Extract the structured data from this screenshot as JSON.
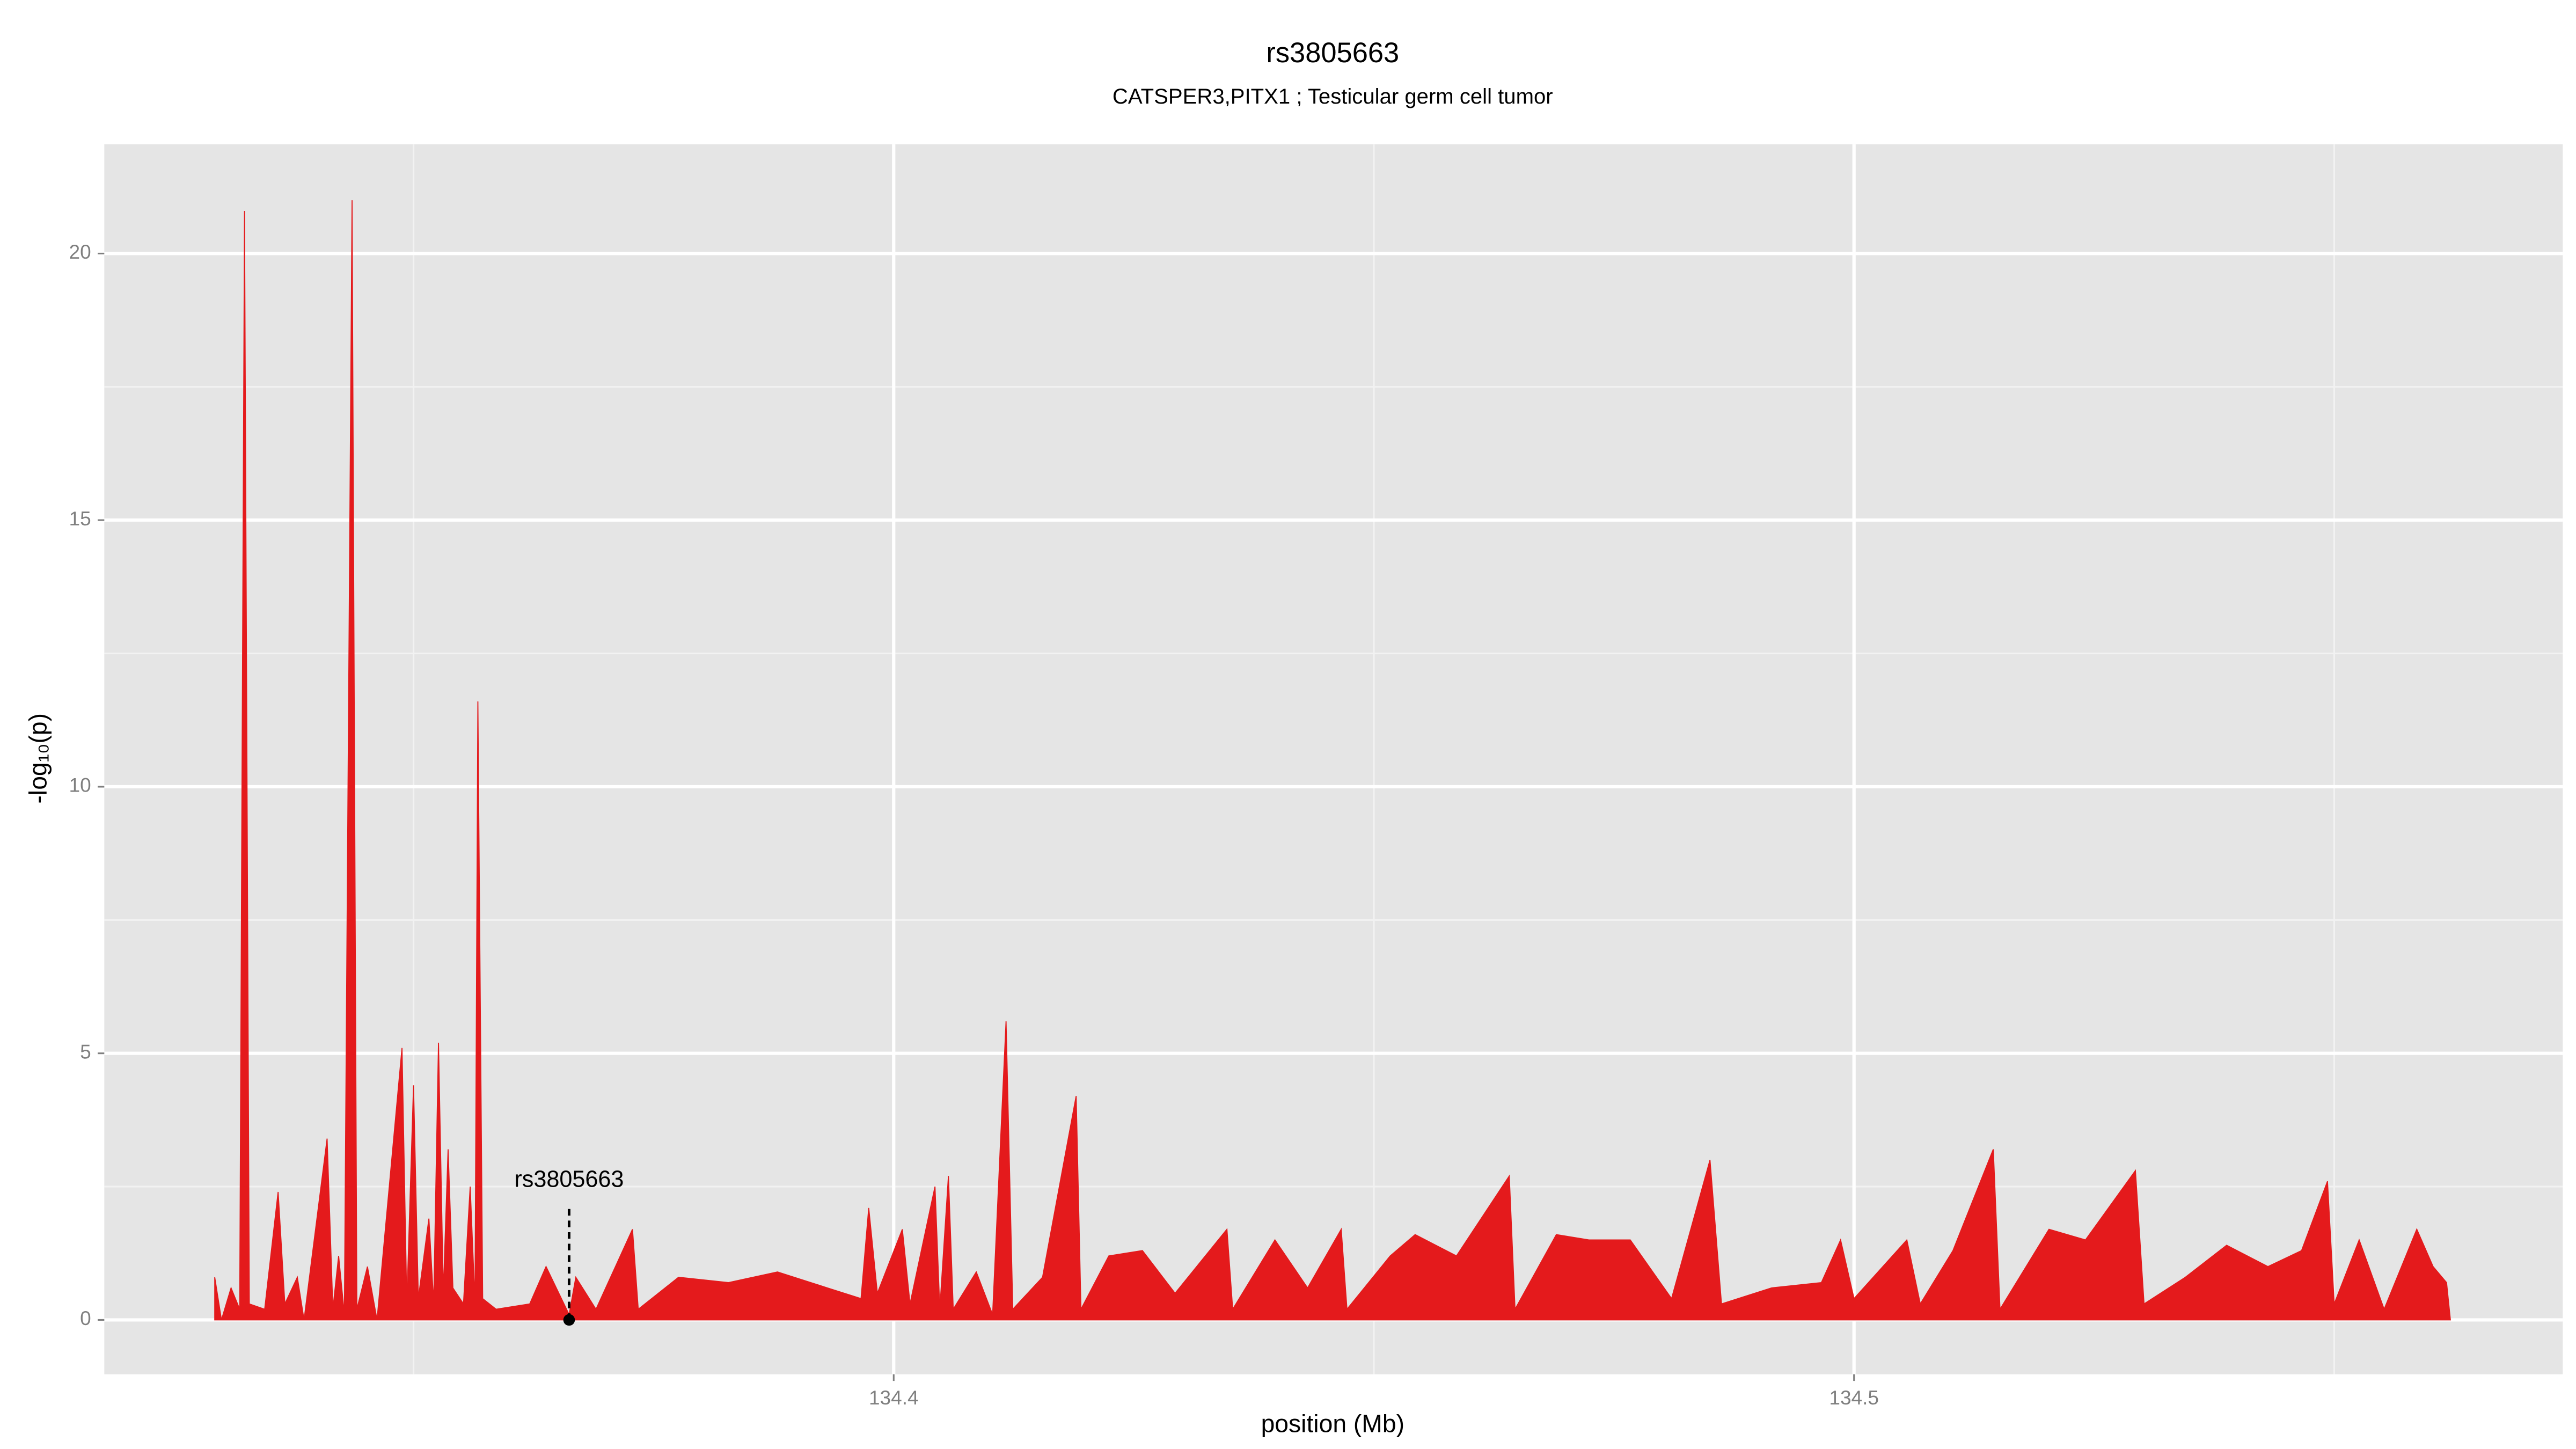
{
  "chart_data": {
    "type": "area",
    "title": "rs3805663",
    "subtitle": "CATSPER3,PITX1 ; Testicular germ cell tumor",
    "xlabel": "position (Mb)",
    "ylabel": "-log₁₀(p)",
    "xlim": [
      134.3178,
      134.5738
    ],
    "ylim": [
      -1.02,
      22.05
    ],
    "xticks": [
      134.4,
      134.5
    ],
    "yticks": [
      0,
      5,
      10,
      15,
      20
    ],
    "x_minor_grid": [
      134.35,
      134.45,
      134.55
    ],
    "y_minor_grid": [
      2.5,
      7.5,
      12.5,
      17.5
    ],
    "grid": true,
    "series": [
      {
        "color": "#e41a1c",
        "x": [
          134.3293,
          134.33,
          134.331,
          134.3319,
          134.3324,
          134.3329,
          134.3345,
          134.3359,
          134.3366,
          134.3379,
          134.3386,
          134.341,
          134.3416,
          134.3422,
          134.3428,
          134.3436,
          134.3441,
          134.3452,
          134.3462,
          134.3488,
          134.3493,
          134.35,
          134.3505,
          134.3516,
          134.3521,
          134.3526,
          134.3531,
          134.3536,
          134.3541,
          134.3552,
          134.3559,
          134.3564,
          134.3567,
          134.3572,
          134.3586,
          134.3621,
          134.3638,
          134.3662,
          134.3669,
          134.369,
          134.3728,
          134.3734,
          134.3776,
          134.3828,
          134.3879,
          134.3931,
          134.3966,
          134.3974,
          134.3983,
          134.4009,
          134.4017,
          134.4043,
          134.4048,
          134.4057,
          134.4062,
          134.4086,
          134.4103,
          134.4117,
          134.4124,
          134.4155,
          134.419,
          134.4195,
          134.4224,
          134.4259,
          134.4293,
          134.4347,
          134.4353,
          134.4397,
          134.4431,
          134.4466,
          134.4472,
          134.4517,
          134.4543,
          134.4586,
          134.4641,
          134.4647,
          134.469,
          134.4724,
          134.4767,
          134.481,
          134.485,
          134.4862,
          134.4914,
          134.4966,
          134.4986,
          134.5,
          134.5055,
          134.5069,
          134.5103,
          134.5145,
          134.5152,
          134.5203,
          134.5241,
          134.5293,
          134.5302,
          134.5345,
          134.5388,
          134.5431,
          134.5466,
          134.5493,
          134.55,
          134.5526,
          134.5552,
          134.5586,
          134.5603,
          134.5617,
          134.5621
        ],
        "values": [
          0.8,
          0,
          0.6,
          0.2,
          20.8,
          0.3,
          0.2,
          2.4,
          0.3,
          0.8,
          0,
          3.4,
          0.2,
          1.2,
          0.1,
          21.0,
          0.2,
          1.0,
          0,
          5.1,
          0.3,
          4.4,
          0.4,
          1.9,
          0.3,
          5.2,
          0.5,
          3.2,
          0.6,
          0.3,
          2.5,
          0.3,
          11.6,
          0.4,
          0.2,
          0.3,
          1.0,
          0.1,
          0.8,
          0.2,
          1.7,
          0.2,
          0.8,
          0.7,
          0.9,
          0.6,
          0.4,
          2.1,
          0.5,
          1.7,
          0.3,
          2.5,
          0.2,
          2.7,
          0.2,
          0.9,
          0.1,
          5.6,
          0.2,
          0.8,
          4.2,
          0.2,
          1.2,
          1.3,
          0.5,
          1.7,
          0.2,
          1.5,
          0.6,
          1.7,
          0.2,
          1.2,
          1.6,
          1.2,
          2.7,
          0.2,
          1.6,
          1.5,
          1.5,
          0.4,
          3.0,
          0.3,
          0.6,
          0.7,
          1.5,
          0.4,
          1.5,
          0.3,
          1.3,
          3.2,
          0.2,
          1.7,
          1.5,
          2.8,
          0.3,
          0.8,
          1.4,
          1.0,
          1.3,
          2.6,
          0.3,
          1.5,
          0.2,
          1.7,
          1.0,
          0.7,
          0
        ]
      }
    ],
    "annotation": {
      "label": "rs3805663",
      "x": 134.3662,
      "y": 0
    }
  }
}
